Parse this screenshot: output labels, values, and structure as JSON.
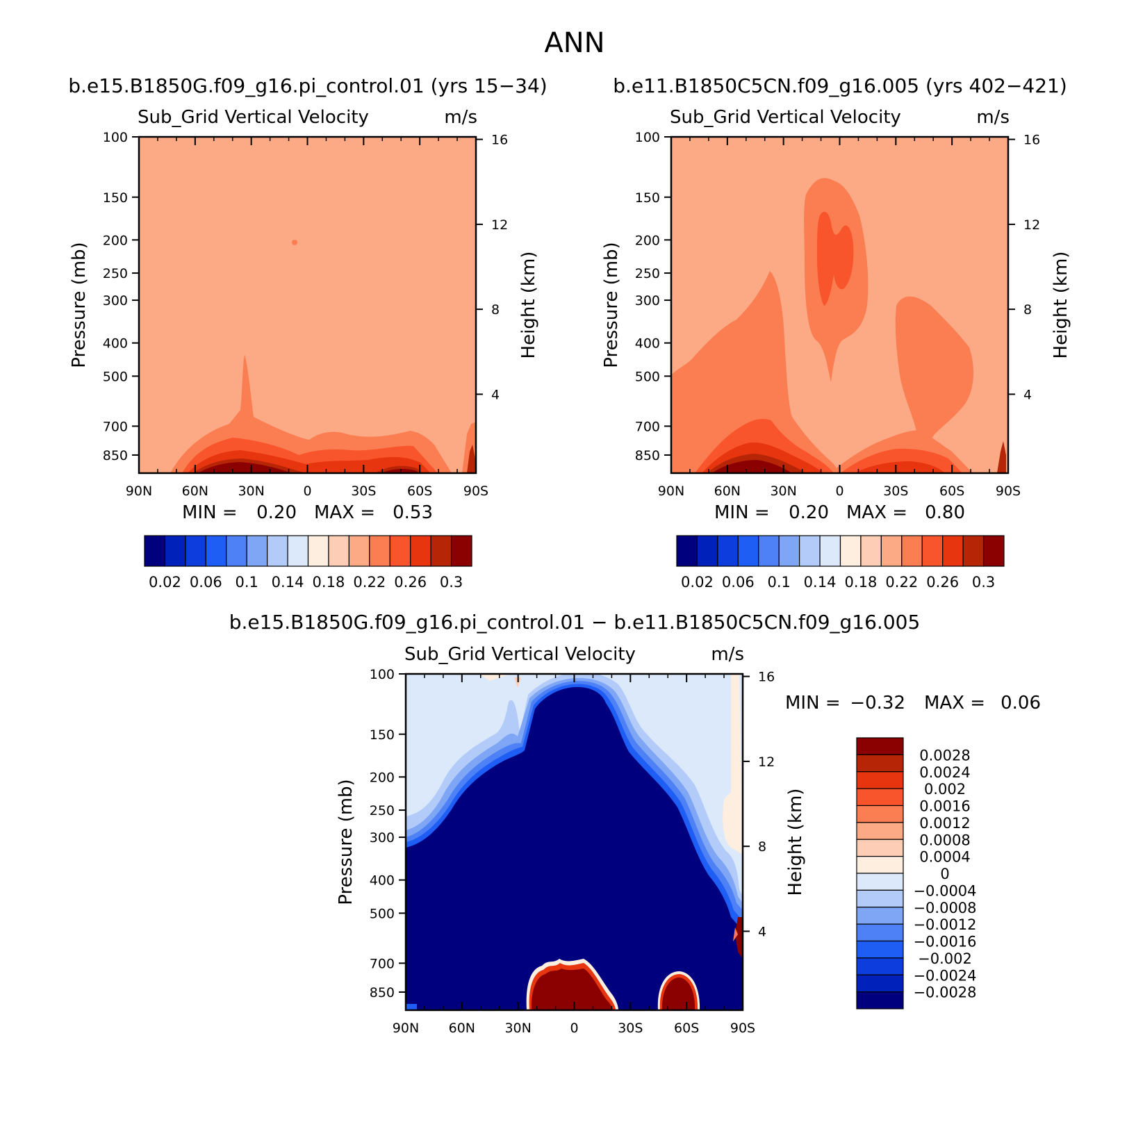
{
  "title": "ANN",
  "colors": {
    "abs": [
      "#00007f",
      "#0022bb",
      "#0d3ddd",
      "#1e5ef5",
      "#4d81f5",
      "#7ea6f5",
      "#b2cbf8",
      "#dce9fb",
      "#feeee0",
      "#fdcdb5",
      "#fcaa86",
      "#fb7e52",
      "#f9552c",
      "#e6350f",
      "#b72507",
      "#8b0000"
    ],
    "diff": [
      "#00007f",
      "#0022bb",
      "#0d3ddd",
      "#1e5ef5",
      "#4d81f5",
      "#7ea6f5",
      "#b2cbf8",
      "#dce9fb",
      "#feeee0",
      "#fdcdb5",
      "#fcaa86",
      "#fb7e52",
      "#f9552c",
      "#e6350f",
      "#b72507",
      "#8b0000"
    ]
  },
  "panels": {
    "p1": {
      "case": "b.e15.B1850G.f09_g16.pi_control.01 (yrs 15−34)",
      "var": "Sub_Grid Vertical Velocity",
      "units": "m/s",
      "ylabel": "Pressure (mb)",
      "y2label": "Height (km)",
      "stats": {
        "min_label": "MIN =",
        "min": "0.20",
        "max_label": "MAX =",
        "max": "0.53"
      }
    },
    "p2": {
      "case": "b.e11.B1850C5CN.f09_g16.005 (yrs 402−421)",
      "var": "Sub_Grid Vertical Velocity",
      "units": "m/s",
      "ylabel": "Pressure (mb)",
      "y2label": "Height (km)",
      "stats": {
        "min_label": "MIN =",
        "min": "0.20",
        "max_label": "MAX =",
        "max": "0.80"
      }
    },
    "p3": {
      "case": "b.e15.B1850G.f09_g16.pi_control.01 − b.e11.B1850C5CN.f09_g16.005",
      "var": "Sub_Grid Vertical Velocity",
      "units": "m/s",
      "ylabel": "Pressure (mb)",
      "y2label": "Height (km)",
      "stats": {
        "min_label": "MIN =",
        "min": "−0.32",
        "max_label": "MAX =",
        "max": "0.06"
      }
    }
  },
  "chart_data": [
    {
      "type": "heatmap",
      "title": "b.e15.B1850G.f09_g16.pi_control.01 (yrs 15−34)",
      "subtitle": "Sub_Grid Vertical Velocity",
      "units": "m/s",
      "xlabel": "",
      "ylabel": "Pressure (mb)",
      "y2label": "Height (km)",
      "x_ticks": [
        "90N",
        "60N",
        "30N",
        "0",
        "30S",
        "60S",
        "90S"
      ],
      "y_ticks": [
        100,
        150,
        200,
        250,
        300,
        400,
        500,
        700,
        850
      ],
      "y2_ticks": [
        16,
        12,
        8,
        4
      ],
      "y_scale": "log",
      "levels_labels": [
        "0.02",
        "0.06",
        "0.1",
        "0.14",
        "0.18",
        "0.22",
        "0.26",
        "0.3"
      ],
      "min": 0.2,
      "max": 0.53
    },
    {
      "type": "heatmap",
      "title": "b.e11.B1850C5CN.f09_g16.005 (yrs 402−421)",
      "subtitle": "Sub_Grid Vertical Velocity",
      "units": "m/s",
      "xlabel": "",
      "ylabel": "Pressure (mb)",
      "y2label": "Height (km)",
      "x_ticks": [
        "90N",
        "60N",
        "30N",
        "0",
        "30S",
        "60S",
        "90S"
      ],
      "y_ticks": [
        100,
        150,
        200,
        250,
        300,
        400,
        500,
        700,
        850
      ],
      "y2_ticks": [
        16,
        12,
        8,
        4
      ],
      "y_scale": "log",
      "levels_labels": [
        "0.02",
        "0.06",
        "0.1",
        "0.14",
        "0.18",
        "0.22",
        "0.26",
        "0.3"
      ],
      "min": 0.2,
      "max": 0.8
    },
    {
      "type": "heatmap",
      "title": "b.e15.B1850G.f09_g16.pi_control.01 − b.e11.B1850C5CN.f09_g16.005",
      "subtitle": "Sub_Grid Vertical Velocity",
      "units": "m/s",
      "xlabel": "",
      "ylabel": "Pressure (mb)",
      "y2label": "Height (km)",
      "x_ticks": [
        "90N",
        "60N",
        "30N",
        "0",
        "30S",
        "60S",
        "90S"
      ],
      "y_ticks": [
        100,
        150,
        200,
        250,
        300,
        400,
        500,
        700,
        850
      ],
      "y2_ticks": [
        16,
        12,
        8,
        4
      ],
      "y_scale": "log",
      "levels_labels": [
        "0.0028",
        "0.0024",
        "0.002",
        "0.0016",
        "0.0012",
        "0.0008",
        "0.0004",
        "0",
        "−0.0004",
        "−0.0008",
        "−0.0012",
        "−0.0016",
        "−0.002",
        "−0.0024",
        "−0.0028"
      ],
      "min": -0.32,
      "max": 0.06
    }
  ]
}
